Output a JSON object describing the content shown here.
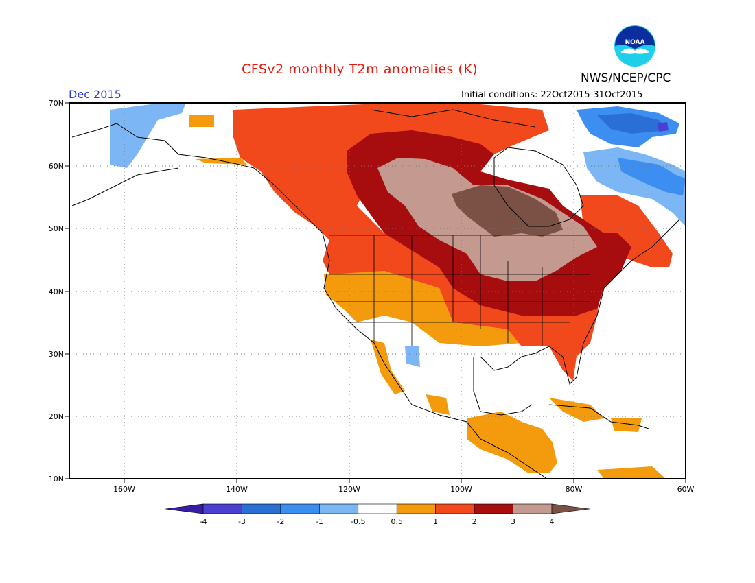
{
  "title": "CFSv2 monthly T2m anomalies (K)",
  "agency": "NWS/NCEP/CPC",
  "logo_text": "NOAA",
  "valid_month": "Dec 2015",
  "initial_conditions": "Initial conditions: 22Oct2015-31Oct2015",
  "map": {
    "lon_range": [
      -172,
      -60
    ],
    "lat_range": [
      10,
      70
    ],
    "lat_ticks": [
      "70N",
      "60N",
      "50N",
      "40N",
      "30N",
      "20N",
      "10N"
    ],
    "lon_ticks": [
      "160W",
      "140W",
      "120W",
      "100W",
      "80W",
      "60W"
    ],
    "grid": "dotted"
  },
  "colorbar": {
    "labels": [
      "-4",
      "-3",
      "-2",
      "-1",
      "-0.5",
      "0.5",
      "1",
      "2",
      "3",
      "4"
    ],
    "colors": [
      "#3a1ba8",
      "#4a3fd0",
      "#2a6fd6",
      "#3c8ef0",
      "#7cb6f4",
      "#ffffff",
      "#f39b0d",
      "#f2491c",
      "#a70c0f",
      "#c49a90",
      "#7b5146"
    ]
  },
  "colors": {
    "title": "#e8160c",
    "month": "#2a3fd6"
  }
}
